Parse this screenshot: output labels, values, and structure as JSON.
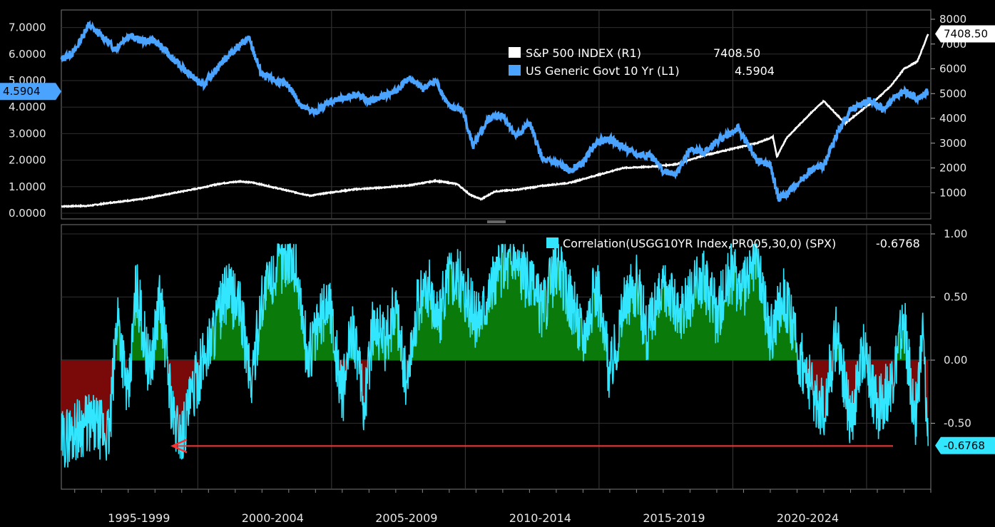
{
  "chart_data": [
    {
      "type": "line",
      "panel": "top",
      "categories": [
        "1995-1999",
        "2000-2004",
        "2005-2009",
        "2010-2014",
        "2015-2019",
        "2020-2024"
      ],
      "left_axis": {
        "ticks": [
          "0.0000",
          "1.0000",
          "2.0000",
          "3.0000",
          "4.0000",
          "5.0000",
          "6.0000",
          "7.0000"
        ],
        "ylim": [
          0,
          7.5
        ]
      },
      "right_axis": {
        "ticks": [
          "1000",
          "2000",
          "3000",
          "4000",
          "5000",
          "6000",
          "7000",
          "8000"
        ],
        "ylim": [
          0,
          8000
        ]
      },
      "grid": true,
      "legend": "top-right",
      "series": [
        {
          "name": "S&P 500 INDEX  (R1)",
          "last_value": "7408.50",
          "axis": "right",
          "color": "#ffffff",
          "x": [
            1993.5,
            1994.5,
            1995.5,
            1996.5,
            1997.5,
            1998.5,
            1999.5,
            2000.2,
            2000.7,
            2001.5,
            2002.3,
            2002.8,
            2003.5,
            2004.5,
            2005.5,
            2006.5,
            2007.5,
            2008.3,
            2008.8,
            2009.2,
            2009.7,
            2010.5,
            2011.5,
            2012.5,
            2013.5,
            2014.5,
            2015.5,
            2016.5,
            2017.5,
            2018.5,
            2019.5,
            2020.1,
            2020.25,
            2020.6,
            2021.5,
            2022.0,
            2022.8,
            2023.5,
            2024.0,
            2024.5,
            2025.0,
            2025.5,
            2025.9
          ],
          "values": [
            450,
            470,
            620,
            740,
            950,
            1150,
            1380,
            1460,
            1400,
            1200,
            1000,
            880,
            1000,
            1140,
            1210,
            1300,
            1480,
            1350,
            900,
            740,
            1050,
            1120,
            1280,
            1400,
            1700,
            2000,
            2050,
            2150,
            2500,
            2750,
            3000,
            3250,
            2450,
            3200,
            4200,
            4700,
            3800,
            4400,
            4800,
            5300,
            6000,
            6300,
            7400
          ]
        },
        {
          "name": "US Generic Govt 10 Yr  (L1)",
          "last_value": "4.5904",
          "axis": "left",
          "color": "#4aa3ff",
          "x": [
            1993.5,
            1994.0,
            1994.5,
            1995.0,
            1995.5,
            1996.0,
            1996.5,
            1997.0,
            1997.5,
            1998.0,
            1998.8,
            1999.5,
            2000.0,
            2000.5,
            2001.0,
            2001.5,
            2002.0,
            2002.5,
            2003.0,
            2003.5,
            2004.0,
            2004.5,
            2005.0,
            2005.5,
            2006.0,
            2006.5,
            2007.0,
            2007.5,
            2008.0,
            2008.5,
            2008.9,
            2009.5,
            2010.0,
            2010.5,
            2011.0,
            2011.5,
            2012.0,
            2012.5,
            2013.0,
            2013.5,
            2014.0,
            2014.5,
            2015.0,
            2015.5,
            2016.0,
            2016.5,
            2017.0,
            2017.5,
            2018.0,
            2018.8,
            2019.5,
            2020.0,
            2020.3,
            2020.6,
            2021.0,
            2021.5,
            2022.0,
            2022.5,
            2023.0,
            2023.8,
            2024.2,
            2024.7,
            2025.0,
            2025.5,
            2025.9
          ],
          "values": [
            5.8,
            6.1,
            7.1,
            6.7,
            6.2,
            6.7,
            6.5,
            6.5,
            6.0,
            5.5,
            4.8,
            5.7,
            6.2,
            6.6,
            5.2,
            5.0,
            4.8,
            4.0,
            3.8,
            4.2,
            4.3,
            4.5,
            4.2,
            4.4,
            4.6,
            5.1,
            4.7,
            5.0,
            4.0,
            3.9,
            2.5,
            3.6,
            3.7,
            2.9,
            3.4,
            2.0,
            1.9,
            1.6,
            1.9,
            2.7,
            2.8,
            2.5,
            2.2,
            2.2,
            1.6,
            1.5,
            2.4,
            2.3,
            2.7,
            3.2,
            2.0,
            1.8,
            0.6,
            0.7,
            1.1,
            1.6,
            1.8,
            3.0,
            3.9,
            4.3,
            3.9,
            4.4,
            4.6,
            4.3,
            4.59
          ]
        }
      ]
    },
    {
      "type": "area",
      "panel": "bottom",
      "categories": [
        "1995-1999",
        "2000-2004",
        "2005-2009",
        "2010-2014",
        "2015-2019",
        "2020-2024"
      ],
      "yticks": [
        "-0.50",
        "0.00",
        "0.50",
        "1.00"
      ],
      "ylim": [
        -1.0,
        1.05
      ],
      "grid": true,
      "legend": "top-right",
      "annotation": "red arrow pointing left at correlation level -0.68",
      "annotation_level": -0.68,
      "series": [
        {
          "name": "Correlation(USGG10YR Index,PR005,30,0) (SPX)",
          "last_value": "-0.6768",
          "color": "#33e6ff",
          "positive_fill": "#0a7a0a",
          "negative_fill": "#7a0a0a",
          "x": [
            1993.5,
            1994.0,
            1994.5,
            1995.0,
            1995.3,
            1995.6,
            1996.0,
            1996.3,
            1996.8,
            1997.2,
            1997.7,
            1998.0,
            1998.5,
            1998.8,
            1999.3,
            1999.7,
            2000.2,
            2000.6,
            2001.0,
            2001.5,
            2002.0,
            2002.3,
            2002.7,
            2003.0,
            2003.5,
            2004.0,
            2004.4,
            2004.8,
            2005.2,
            2005.6,
            2006.0,
            2006.4,
            2006.8,
            2007.2,
            2007.6,
            2008.0,
            2008.5,
            2009.0,
            2009.5,
            2010.0,
            2010.5,
            2011.0,
            2011.5,
            2012.0,
            2012.5,
            2013.0,
            2013.5,
            2014.0,
            2014.5,
            2015.0,
            2015.4,
            2015.8,
            2016.2,
            2016.6,
            2017.0,
            2017.5,
            2018.0,
            2018.5,
            2019.0,
            2019.5,
            2020.0,
            2020.5,
            2021.0,
            2021.5,
            2022.0,
            2022.5,
            2023.0,
            2023.5,
            2024.0,
            2024.5,
            2025.0,
            2025.4,
            2025.7,
            2025.9
          ],
          "values": [
            -0.65,
            -0.55,
            -0.5,
            -0.55,
            -0.6,
            0.4,
            -0.35,
            0.6,
            -0.1,
            0.5,
            -0.5,
            -0.6,
            -0.2,
            0.0,
            0.3,
            0.55,
            0.4,
            -0.2,
            0.5,
            0.7,
            0.85,
            0.7,
            0.0,
            0.2,
            0.5,
            -0.3,
            0.3,
            -0.4,
            0.35,
            0.1,
            0.45,
            -0.2,
            0.4,
            0.6,
            0.3,
            0.7,
            0.6,
            0.3,
            0.55,
            0.75,
            0.8,
            0.6,
            0.4,
            0.75,
            0.5,
            0.2,
            0.6,
            -0.1,
            0.4,
            0.6,
            0.2,
            0.45,
            0.6,
            0.3,
            0.5,
            0.65,
            0.35,
            0.7,
            0.55,
            0.8,
            0.2,
            0.55,
            0.1,
            -0.2,
            -0.4,
            0.25,
            -0.5,
            0.1,
            -0.4,
            -0.2,
            0.3,
            -0.5,
            0.2,
            -0.68
          ]
        }
      ]
    }
  ]
}
